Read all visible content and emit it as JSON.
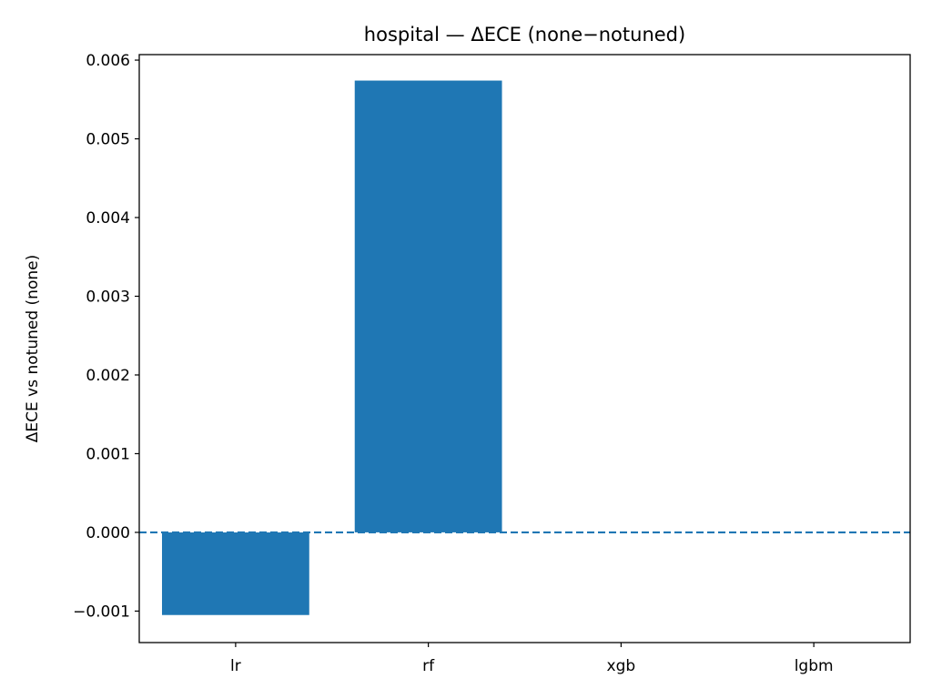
{
  "chart_data": {
    "type": "bar",
    "title": "hospital — ΔECE (none−notuned)",
    "xlabel": "",
    "ylabel": "ΔECE vs notuned (none)",
    "categories": [
      "lr",
      "rf",
      "xgb",
      "lgbm"
    ],
    "values": [
      -0.00105,
      0.00574,
      0.0,
      0.0
    ],
    "ylim": [
      -0.0014,
      0.00607
    ],
    "yticks": [
      -0.001,
      0.0,
      0.001,
      0.002,
      0.003,
      0.004,
      0.005,
      0.006
    ],
    "ytick_labels": [
      "−0.001",
      "0.000",
      "0.001",
      "0.002",
      "0.003",
      "0.004",
      "0.005",
      "0.006"
    ],
    "reference_line": {
      "y": 0.0,
      "style": "dashed"
    },
    "bar_color": "#1f77b4",
    "grid": false,
    "legend": "none"
  }
}
